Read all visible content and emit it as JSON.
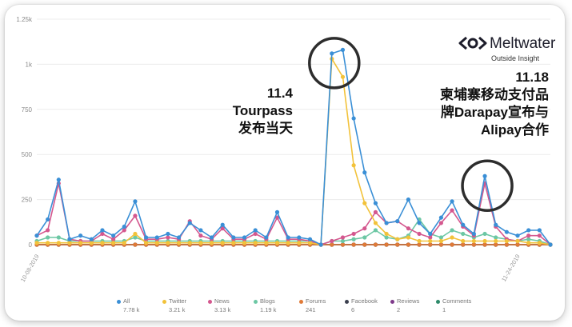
{
  "chart_data": {
    "type": "line",
    "title": "",
    "xlabel": "",
    "ylabel": "",
    "ylim": [
      0,
      1250
    ],
    "yticks": [
      "0",
      "250",
      "500",
      "750",
      "1k",
      "1.25k"
    ],
    "x_start_label": "10-08-2019",
    "x_end_label": "11-24-2019",
    "x_count": 48,
    "grid": true,
    "series": [
      {
        "name": "All",
        "total": "7.78 k",
        "color": "#3a8fd6",
        "values": [
          50,
          140,
          360,
          30,
          50,
          30,
          80,
          50,
          100,
          240,
          40,
          40,
          60,
          40,
          120,
          80,
          40,
          110,
          40,
          40,
          80,
          40,
          180,
          40,
          40,
          30,
          0,
          1060,
          1080,
          700,
          400,
          230,
          120,
          130,
          250,
          120,
          60,
          150,
          240,
          110,
          60,
          380,
          110,
          70,
          50,
          80,
          80,
          0
        ]
      },
      {
        "name": "Twitter",
        "total": "3.21 k",
        "color": "#f2c23a",
        "values": [
          10,
          10,
          10,
          10,
          10,
          10,
          10,
          10,
          10,
          60,
          10,
          10,
          10,
          10,
          10,
          10,
          10,
          10,
          10,
          10,
          10,
          10,
          10,
          10,
          10,
          10,
          0,
          1030,
          930,
          440,
          230,
          120,
          60,
          30,
          40,
          20,
          20,
          20,
          40,
          20,
          20,
          20,
          20,
          20,
          20,
          10,
          10,
          0
        ]
      },
      {
        "name": "News",
        "total": "3.13 k",
        "color": "#d4578e",
        "values": [
          50,
          80,
          340,
          30,
          20,
          20,
          60,
          30,
          80,
          160,
          30,
          30,
          40,
          30,
          130,
          50,
          30,
          90,
          30,
          30,
          60,
          30,
          150,
          30,
          30,
          20,
          0,
          20,
          40,
          60,
          90,
          180,
          120,
          130,
          90,
          60,
          40,
          120,
          190,
          100,
          50,
          340,
          100,
          30,
          20,
          50,
          50,
          0
        ]
      },
      {
        "name": "Blogs",
        "total": "1.19 k",
        "color": "#6cc7a4",
        "values": [
          20,
          40,
          40,
          20,
          20,
          20,
          20,
          20,
          20,
          40,
          20,
          20,
          20,
          20,
          20,
          20,
          20,
          20,
          20,
          20,
          20,
          20,
          20,
          20,
          20,
          20,
          0,
          20,
          20,
          30,
          40,
          80,
          40,
          30,
          50,
          140,
          60,
          40,
          80,
          60,
          40,
          60,
          40,
          30,
          20,
          30,
          20,
          0
        ]
      },
      {
        "name": "Forums",
        "total": "241",
        "color": "#e07a37",
        "values": [
          0,
          0,
          0,
          0,
          0,
          0,
          0,
          0,
          0,
          0,
          0,
          0,
          0,
          0,
          0,
          0,
          0,
          0,
          0,
          0,
          0,
          0,
          0,
          0,
          0,
          0,
          0,
          0,
          0,
          0,
          0,
          0,
          0,
          0,
          0,
          0,
          0,
          0,
          0,
          0,
          0,
          0,
          0,
          0,
          0,
          0,
          0,
          0
        ]
      },
      {
        "name": "Facebook",
        "total": "6",
        "color": "#3b3f4e",
        "values": [
          0,
          0,
          0,
          0,
          0,
          0,
          0,
          0,
          0,
          0,
          0,
          0,
          0,
          0,
          0,
          0,
          0,
          0,
          0,
          0,
          0,
          0,
          0,
          0,
          0,
          0,
          0,
          0,
          0,
          0,
          0,
          0,
          0,
          0,
          0,
          0,
          0,
          0,
          0,
          0,
          0,
          0,
          0,
          0,
          0,
          0,
          0,
          0
        ]
      },
      {
        "name": "Reviews",
        "total": "2",
        "color": "#7e3a8a",
        "values": [
          0,
          0,
          0,
          0,
          0,
          0,
          0,
          0,
          0,
          0,
          0,
          0,
          0,
          0,
          0,
          0,
          0,
          0,
          0,
          0,
          0,
          0,
          0,
          0,
          0,
          0,
          0,
          0,
          0,
          0,
          0,
          0,
          0,
          0,
          0,
          0,
          0,
          0,
          0,
          0,
          0,
          0,
          0,
          0,
          0,
          0,
          0,
          0
        ]
      },
      {
        "name": "Comments",
        "total": "1",
        "color": "#2e8a6a",
        "values": [
          0,
          0,
          0,
          0,
          0,
          0,
          0,
          0,
          0,
          0,
          0,
          0,
          0,
          0,
          0,
          0,
          0,
          0,
          0,
          0,
          0,
          0,
          0,
          0,
          0,
          0,
          0,
          0,
          0,
          0,
          0,
          0,
          0,
          0,
          0,
          0,
          0,
          0,
          0,
          0,
          0,
          0,
          0,
          0,
          0,
          0,
          0,
          0
        ]
      }
    ],
    "highlights": [
      {
        "x_index": 27,
        "value": 1060
      },
      {
        "x_index": 41,
        "value": 380
      }
    ]
  },
  "annotations": {
    "left": [
      "11.4",
      "Tourpass",
      "发布当天"
    ],
    "right": [
      "11.18",
      "柬埔寨移动支付品",
      "牌Darapay宣布与",
      "Alipay合作"
    ]
  },
  "logo": {
    "name": "Meltwater",
    "tagline": "Outside Insight"
  }
}
